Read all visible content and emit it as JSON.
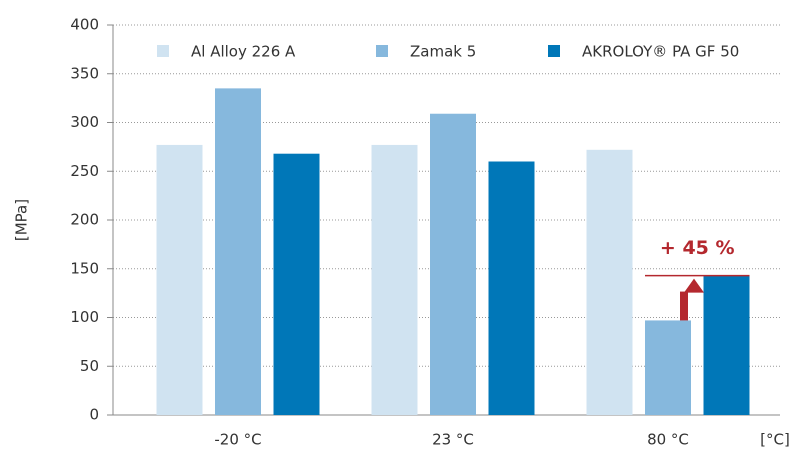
{
  "chart_data": {
    "type": "bar",
    "categories": [
      "-20 °C",
      "23 °C",
      "80 °C"
    ],
    "series": [
      {
        "name": "Al Alloy 226 A",
        "color": "#d0e3f1",
        "values": [
          277,
          277,
          272
        ]
      },
      {
        "name": "Zamak 5",
        "color": "#86b8dd",
        "values": [
          335,
          309,
          97
        ]
      },
      {
        "name": "AKROLOY® PA GF 50",
        "color": "#0077b8",
        "values": [
          268,
          260,
          143
        ]
      }
    ],
    "y_label": "[MPa]",
    "x_label": "[°C]",
    "annotation": "+ 45 %",
    "ylim": [
      0,
      400
    ],
    "yticks": [
      0,
      50,
      100,
      150,
      200,
      250,
      300,
      350,
      400
    ],
    "grid": true,
    "legend": "top"
  }
}
